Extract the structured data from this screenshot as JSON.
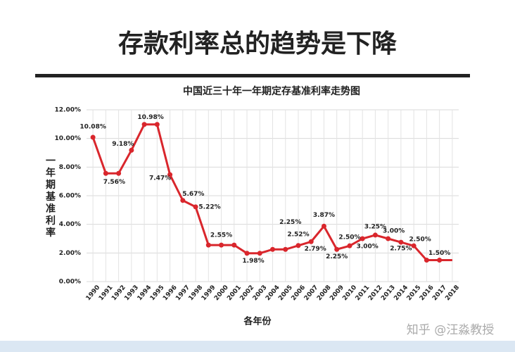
{
  "header": {
    "title": "存款利率总的趋势是下降"
  },
  "watermark": "知乎 @汪淼教授",
  "chart_data": {
    "type": "line",
    "title": "中国近三十年一年期定存基准利率走势图",
    "x_label": "各年份",
    "y_label": "一年期基准利率",
    "categories": [
      "1990",
      "1991",
      "1992",
      "1993",
      "1994",
      "1995",
      "1996",
      "1997",
      "1998",
      "1999",
      "2000",
      "2001",
      "2002",
      "2003",
      "2004",
      "2005",
      "2006",
      "2007",
      "2008",
      "2009",
      "2010",
      "2011",
      "2012",
      "2013",
      "2014",
      "2015",
      "2016",
      "2017",
      "2018"
    ],
    "series": [
      {
        "name": "一年期定存基准利率",
        "color": "#d9262c",
        "values": [
          10.08,
          7.56,
          7.56,
          9.18,
          10.98,
          10.98,
          7.47,
          5.67,
          5.22,
          2.55,
          2.55,
          2.55,
          1.98,
          1.98,
          2.25,
          2.25,
          2.52,
          2.79,
          3.87,
          2.25,
          2.5,
          3.0,
          3.25,
          3.0,
          2.75,
          2.5,
          1.5,
          1.5,
          1.5
        ],
        "value_labels": [
          "10.08%",
          "7.56%",
          null,
          "9.18%",
          "10.98%",
          null,
          "7.47%",
          "5.67%",
          "5.22%",
          null,
          "2.55%",
          null,
          "1.98%",
          null,
          null,
          "2.25%",
          "2.52%",
          "2.79%",
          "3.87%",
          "2.25%",
          "2.50%",
          "3.00%",
          "3.25%",
          "3.00%",
          "2.75%",
          "2.50%",
          null,
          "1.50%",
          null
        ]
      }
    ],
    "ylim": [
      0,
      12
    ],
    "yticks": [
      {
        "value": 0,
        "label": "0.00%"
      },
      {
        "value": 2,
        "label": "2.00%"
      },
      {
        "value": 4,
        "label": "4.00%"
      },
      {
        "value": 6,
        "label": "6.00%"
      },
      {
        "value": 8,
        "label": "8.00%"
      },
      {
        "value": 10,
        "label": "10.00%"
      },
      {
        "value": 12,
        "label": "12.00%"
      }
    ],
    "grid": true
  }
}
